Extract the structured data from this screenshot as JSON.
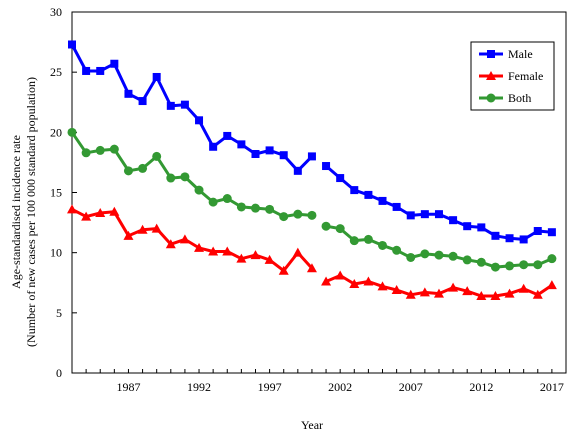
{
  "chart_data": {
    "type": "line",
    "title": "",
    "xlabel": "Year",
    "ylabel": "Age-standardised incidence rate",
    "ylabel_line2": "(Number of new cases per 100 000 standard population)",
    "xlim": [
      1983,
      2018
    ],
    "ylim": [
      0,
      30
    ],
    "x_ticks": [
      1987,
      1992,
      1997,
      2002,
      2007,
      2012,
      2017
    ],
    "y_ticks": [
      0,
      5,
      10,
      15,
      20,
      25,
      30
    ],
    "grid": false,
    "legend_position": "top-right",
    "x": [
      1983,
      1984,
      1985,
      1986,
      1987,
      1988,
      1989,
      1990,
      1991,
      1992,
      1993,
      1994,
      1995,
      1996,
      1997,
      1998,
      1999,
      2000,
      2001,
      2002,
      2003,
      2004,
      2005,
      2006,
      2007,
      2008,
      2009,
      2010,
      2011,
      2012,
      2013,
      2014,
      2015,
      2016,
      2017
    ],
    "segments": [
      [
        1983,
        2000
      ],
      [
        2001,
        2017
      ]
    ],
    "series": [
      {
        "name": "Male",
        "color": "#0000ff",
        "marker": "square",
        "values": [
          27.3,
          25.1,
          25.1,
          25.7,
          23.2,
          22.6,
          24.6,
          22.2,
          22.3,
          21.0,
          18.8,
          19.7,
          19.0,
          18.2,
          18.5,
          18.1,
          16.8,
          18.0,
          17.2,
          16.2,
          15.2,
          14.8,
          14.3,
          13.8,
          13.1,
          13.2,
          13.2,
          12.7,
          12.2,
          12.1,
          11.4,
          11.2,
          11.1,
          11.8,
          11.7
        ]
      },
      {
        "name": "Female",
        "color": "#ff0000",
        "marker": "triangle",
        "values": [
          13.6,
          13.0,
          13.3,
          13.4,
          11.4,
          11.9,
          12.0,
          10.7,
          11.1,
          10.4,
          10.1,
          10.1,
          9.5,
          9.8,
          9.4,
          8.5,
          10.0,
          8.7,
          7.6,
          8.1,
          7.4,
          7.6,
          7.2,
          6.9,
          6.5,
          6.7,
          6.6,
          7.1,
          6.8,
          6.4,
          6.4,
          6.6,
          7.0,
          6.5,
          7.3
        ]
      },
      {
        "name": "Both",
        "color": "#339933",
        "marker": "circle",
        "values": [
          20.0,
          18.3,
          18.5,
          18.6,
          16.8,
          17.0,
          18.0,
          16.2,
          16.3,
          15.2,
          14.2,
          14.5,
          13.8,
          13.7,
          13.6,
          13.0,
          13.2,
          13.1,
          12.2,
          12.0,
          11.0,
          11.1,
          10.6,
          10.2,
          9.6,
          9.9,
          9.8,
          9.7,
          9.4,
          9.2,
          8.8,
          8.9,
          9.0,
          9.0,
          9.5
        ]
      }
    ]
  }
}
